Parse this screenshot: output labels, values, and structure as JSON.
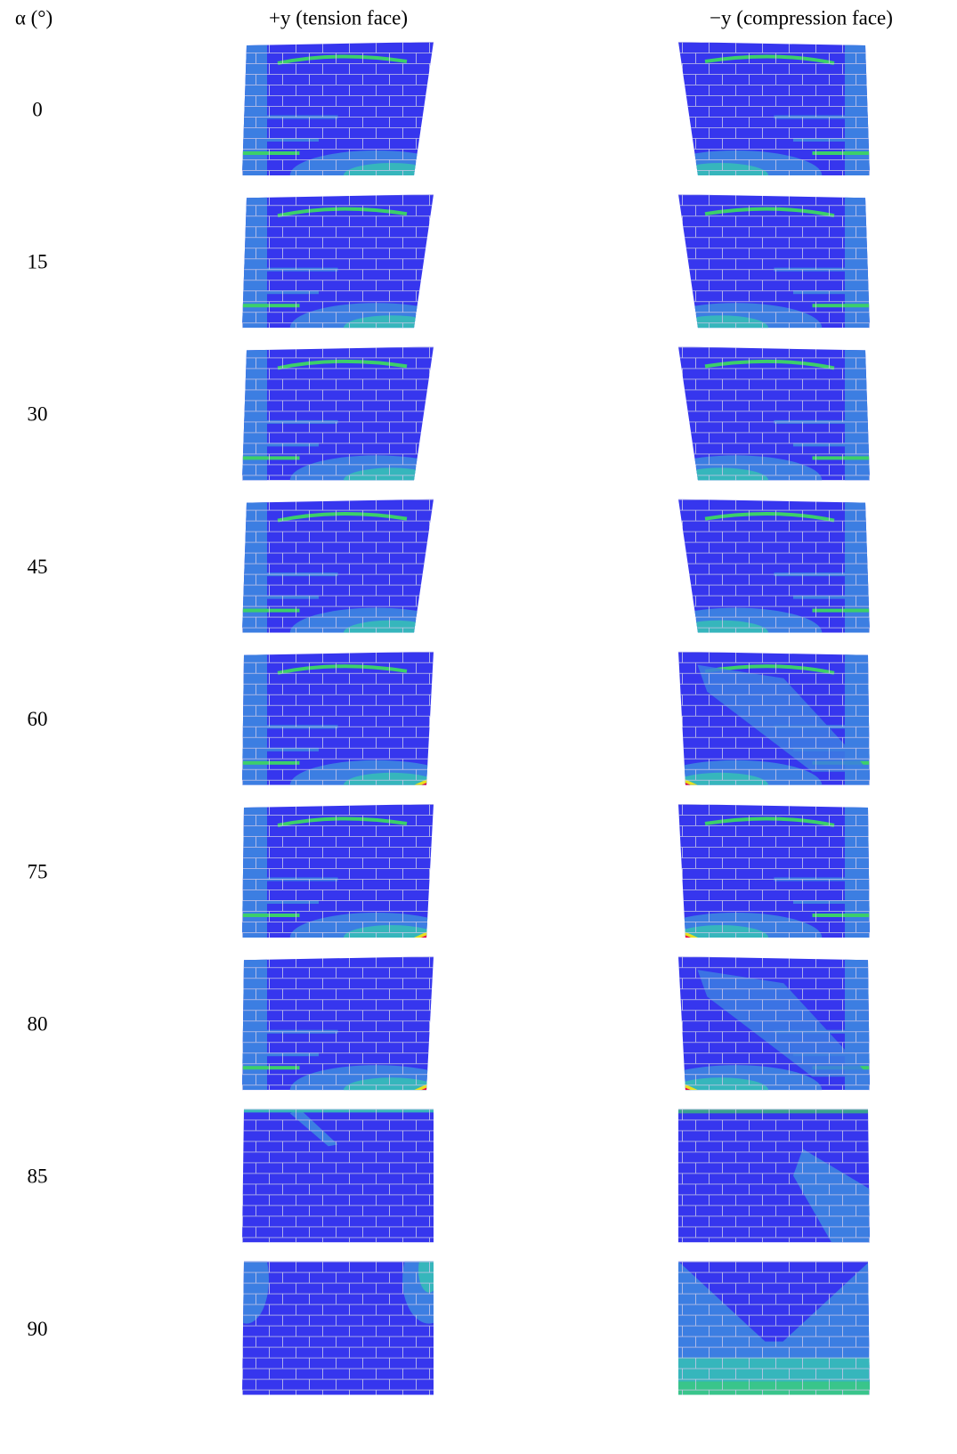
{
  "header": {
    "angle": "α (°)",
    "tension": "+y (tension face)",
    "compression": "−y (compression face)"
  },
  "rows": [
    {
      "angle": "0"
    },
    {
      "angle": "15"
    },
    {
      "angle": "30"
    },
    {
      "angle": "45"
    },
    {
      "angle": "60"
    },
    {
      "angle": "75"
    },
    {
      "angle": "80"
    },
    {
      "angle": "85"
    },
    {
      "angle": "90"
    }
  ]
}
